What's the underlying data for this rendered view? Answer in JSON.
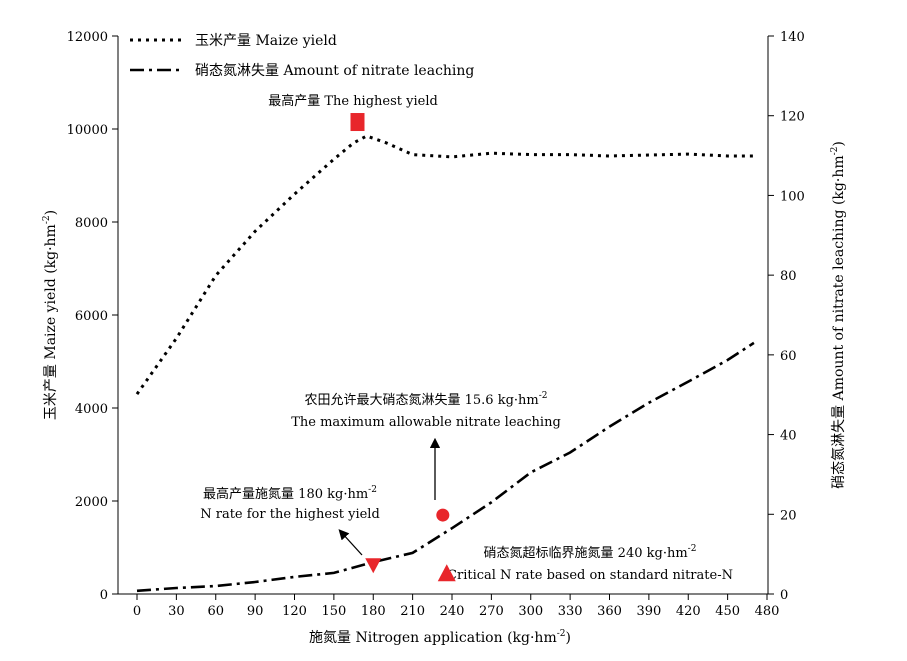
{
  "chart_data": {
    "type": "line",
    "xlabel": "施氮量 Nitrogen application (kg·hm⁻²)",
    "ylabel_left": "玉米产量 Maize yield (kg·hm⁻²)",
    "ylabel_right": "硝态氮淋失量 Amount of nitrate leaching (kg·hm⁻²)",
    "xlim": [
      0,
      480
    ],
    "ylim_left": [
      0,
      12000
    ],
    "ylim_right": [
      0,
      140
    ],
    "x_ticks": [
      0,
      30,
      60,
      90,
      120,
      150,
      180,
      210,
      240,
      270,
      300,
      330,
      360,
      390,
      420,
      450,
      480
    ],
    "y_ticks_left": [
      0,
      2000,
      4000,
      6000,
      8000,
      10000,
      12000
    ],
    "y_ticks_right": [
      0,
      20,
      40,
      60,
      80,
      100,
      120,
      140
    ],
    "legend_position": "top-left",
    "legend": [
      "玉米产量 Maize yield",
      "硝态氮淋失量 Amount of nitrate leaching"
    ],
    "series": [
      {
        "name": "玉米产量 Maize yield",
        "axis": "left",
        "style": "dotted",
        "x": [
          0,
          30,
          60,
          90,
          120,
          150,
          165,
          175,
          190,
          210,
          240,
          270,
          300,
          330,
          360,
          390,
          420,
          450,
          470
        ],
        "y": [
          4300,
          5500,
          6850,
          7800,
          8600,
          9350,
          9700,
          9850,
          9700,
          9450,
          9400,
          9480,
          9450,
          9450,
          9420,
          9440,
          9460,
          9420,
          9420
        ]
      },
      {
        "name": "硝态氮淋失量 Amount of nitrate leaching",
        "axis": "right",
        "style": "dash-dot",
        "x": [
          0,
          30,
          60,
          90,
          120,
          150,
          180,
          210,
          240,
          270,
          300,
          330,
          360,
          390,
          420,
          450,
          470
        ],
        "y": [
          0.8,
          1.5,
          2,
          3,
          4.3,
          5.3,
          8,
          10.3,
          16.5,
          23,
          30.5,
          35.5,
          42,
          48,
          53.3,
          58.7,
          63
        ]
      }
    ],
    "markers": [
      {
        "label_cn": "最高产量",
        "label_en": "The highest yield",
        "shape": "square",
        "x": 168,
        "y": 10150,
        "axis": "left",
        "color": "#e8262b"
      },
      {
        "label_cn": "最高产量施氮量 180 kg·hm⁻²",
        "label_en": "N rate for the highest yield",
        "shape": "triangle-down",
        "x": 180,
        "y": 7.2,
        "axis": "right",
        "color": "#e8262b"
      },
      {
        "label_cn": "农田允许最大硝态氮淋失量 15.6 kg·hm⁻²",
        "label_en": "The maximum allowable nitrate leaching",
        "shape": "circle",
        "x": 233,
        "y": 19.8,
        "axis": "right",
        "color": "#e8262b"
      },
      {
        "label_cn": "硝态氮超标临界施氮量 240 kg·hm⁻²",
        "label_en": "Critical N rate based on standard nitrate-N",
        "shape": "triangle-up",
        "x": 236,
        "y": 5.2,
        "axis": "right",
        "color": "#e8262b"
      }
    ]
  },
  "text": {
    "xlabel_prefix": "施氮量 Nitrogen application (kg·hm",
    "xlabel_sup": "-2",
    "xlabel_suffix": ")",
    "ylabel_left_prefix": "玉米产量 Maize yield (kg·hm",
    "ylabel_left_sup": "-2",
    "ylabel_left_suffix": ")",
    "ylabel_right_prefix": "硝态氮淋失量 Amount of nitrate leaching (kg·hm",
    "ylabel_right_sup": "-2",
    "ylabel_right_suffix": ")",
    "legend_yield": "玉米产量 Maize yield",
    "legend_nitrate": "硝态氮淋失量 Amount of nitrate leaching",
    "ann_highest_yield": "最高产量 The highest yield",
    "ann_nrate_cn_prefix": "最高产量施氮量 180 kg·hm",
    "ann_nrate_cn_sup": "-2",
    "ann_nrate_en": "N rate for the highest yield",
    "ann_allow_cn_prefix": "农田允许最大硝态氮淋失量 15.6 kg·hm",
    "ann_allow_cn_sup": "-2",
    "ann_allow_en": "The maximum allowable nitrate leaching",
    "ann_critical_cn_prefix": "硝态氮超标临界施氮量 240 kg·hm",
    "ann_critical_cn_sup": "-2",
    "ann_critical_en": "Critical N rate based on standard nitrate-N"
  },
  "colors": {
    "marker": "#e8262b",
    "line": "#000000"
  }
}
